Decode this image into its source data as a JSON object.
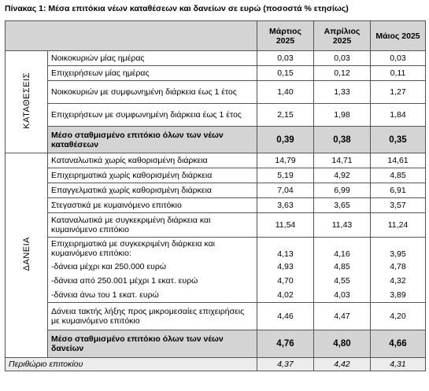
{
  "title": "Πίνακας 1: Μέσα επιτόκια νέων καταθέσεων και δανείων σε ευρώ (ποσοστά % ετησίως)",
  "header": {
    "columns": [
      "Μάρτιος 2025",
      "Απρίλιος 2025",
      "Μάιος 2025"
    ]
  },
  "deposits": {
    "group": "ΚΑΤΑΘΕΣΕΙΣ",
    "rows": [
      {
        "label": "Νοικοκυριών μίας ημέρας",
        "values": [
          "0,03",
          "0,03",
          "0,03"
        ]
      },
      {
        "label": "Επιχειρήσεων μίας ημέρας",
        "values": [
          "0,15",
          "0,12",
          "0,11"
        ]
      },
      {
        "label": "Νοικοκυριών με συμφωνημένη διάρκεια έως 1 έτος",
        "values": [
          "1,40",
          "1,33",
          "1,27"
        ]
      },
      {
        "label": "Επιχειρήσεων με συμφωνημένη διάρκεια έως 1 έτος",
        "values": [
          "2,15",
          "1,98",
          "1,84"
        ]
      }
    ],
    "average": {
      "label": "Μέσο σταθμισμένο επιτόκιο όλων των νέων καταθέσεων",
      "values": [
        "0,39",
        "0,38",
        "0,35"
      ]
    }
  },
  "loans": {
    "group": "ΔΑΝΕΙΑ",
    "rows": [
      {
        "label": "Καταναλωτικά χωρίς καθορισμένη διάρκεια",
        "values": [
          "14,79",
          "14,71",
          "14,61"
        ]
      },
      {
        "label": "Επιχειρηματικά χωρίς καθορισμένη διάρκεια",
        "values": [
          "5,19",
          "4,92",
          "4,85"
        ]
      },
      {
        "label": "Επαγγελματικά χωρίς καθορισμένη διάρκεια",
        "values": [
          "7,04",
          "6,99",
          "6,91"
        ]
      },
      {
        "label": "Στεγαστικά με κυμαινόμενο επιτόκιο",
        "values": [
          "3,63",
          "3,65",
          "3,57"
        ]
      },
      {
        "label": "Καταναλωτικά με συγκεκριμένη διάρκεια και κυμαινόμενο επιτόκιο",
        "values": [
          "11,54",
          "11,43",
          "11,24"
        ]
      },
      {
        "label": "Επιχειρηματικά με συγκεκριμένη διάρκεια και κυμαινόμενο επιτόκιο:",
        "values": [
          "4,13",
          "4,16",
          "3,95"
        ],
        "sub_rows": [
          {
            "label": "-δάνεια μέχρι και 250.000 ευρώ",
            "values": [
              "4,93",
              "4,85",
              "4,78"
            ]
          },
          {
            "label": "-δάνεια από 250.001 μέχρι 1 εκατ. ευρώ",
            "values": [
              "4,70",
              "4,55",
              "4,32"
            ]
          },
          {
            "label": "-δάνεια άνω του 1 εκατ. ευρώ",
            "values": [
              "4,02",
              "4,03",
              "3,89"
            ]
          }
        ]
      },
      {
        "label": "Δάνεια τακτής λήξης προς μικρομεσαίες επιχειρήσεις με κυμαινόμενο επιτόκιο",
        "values": [
          "4,46",
          "4,47",
          "4,20"
        ]
      }
    ],
    "average": {
      "label": "Μέσο σταθμισμένο επιτόκιο όλων των νέων δανείων",
      "values": [
        "4,76",
        "4,80",
        "4,66"
      ]
    }
  },
  "margin": {
    "label": "Περιθώριο επιτοκίου",
    "values": [
      "4,37",
      "4,42",
      "4,31"
    ]
  }
}
